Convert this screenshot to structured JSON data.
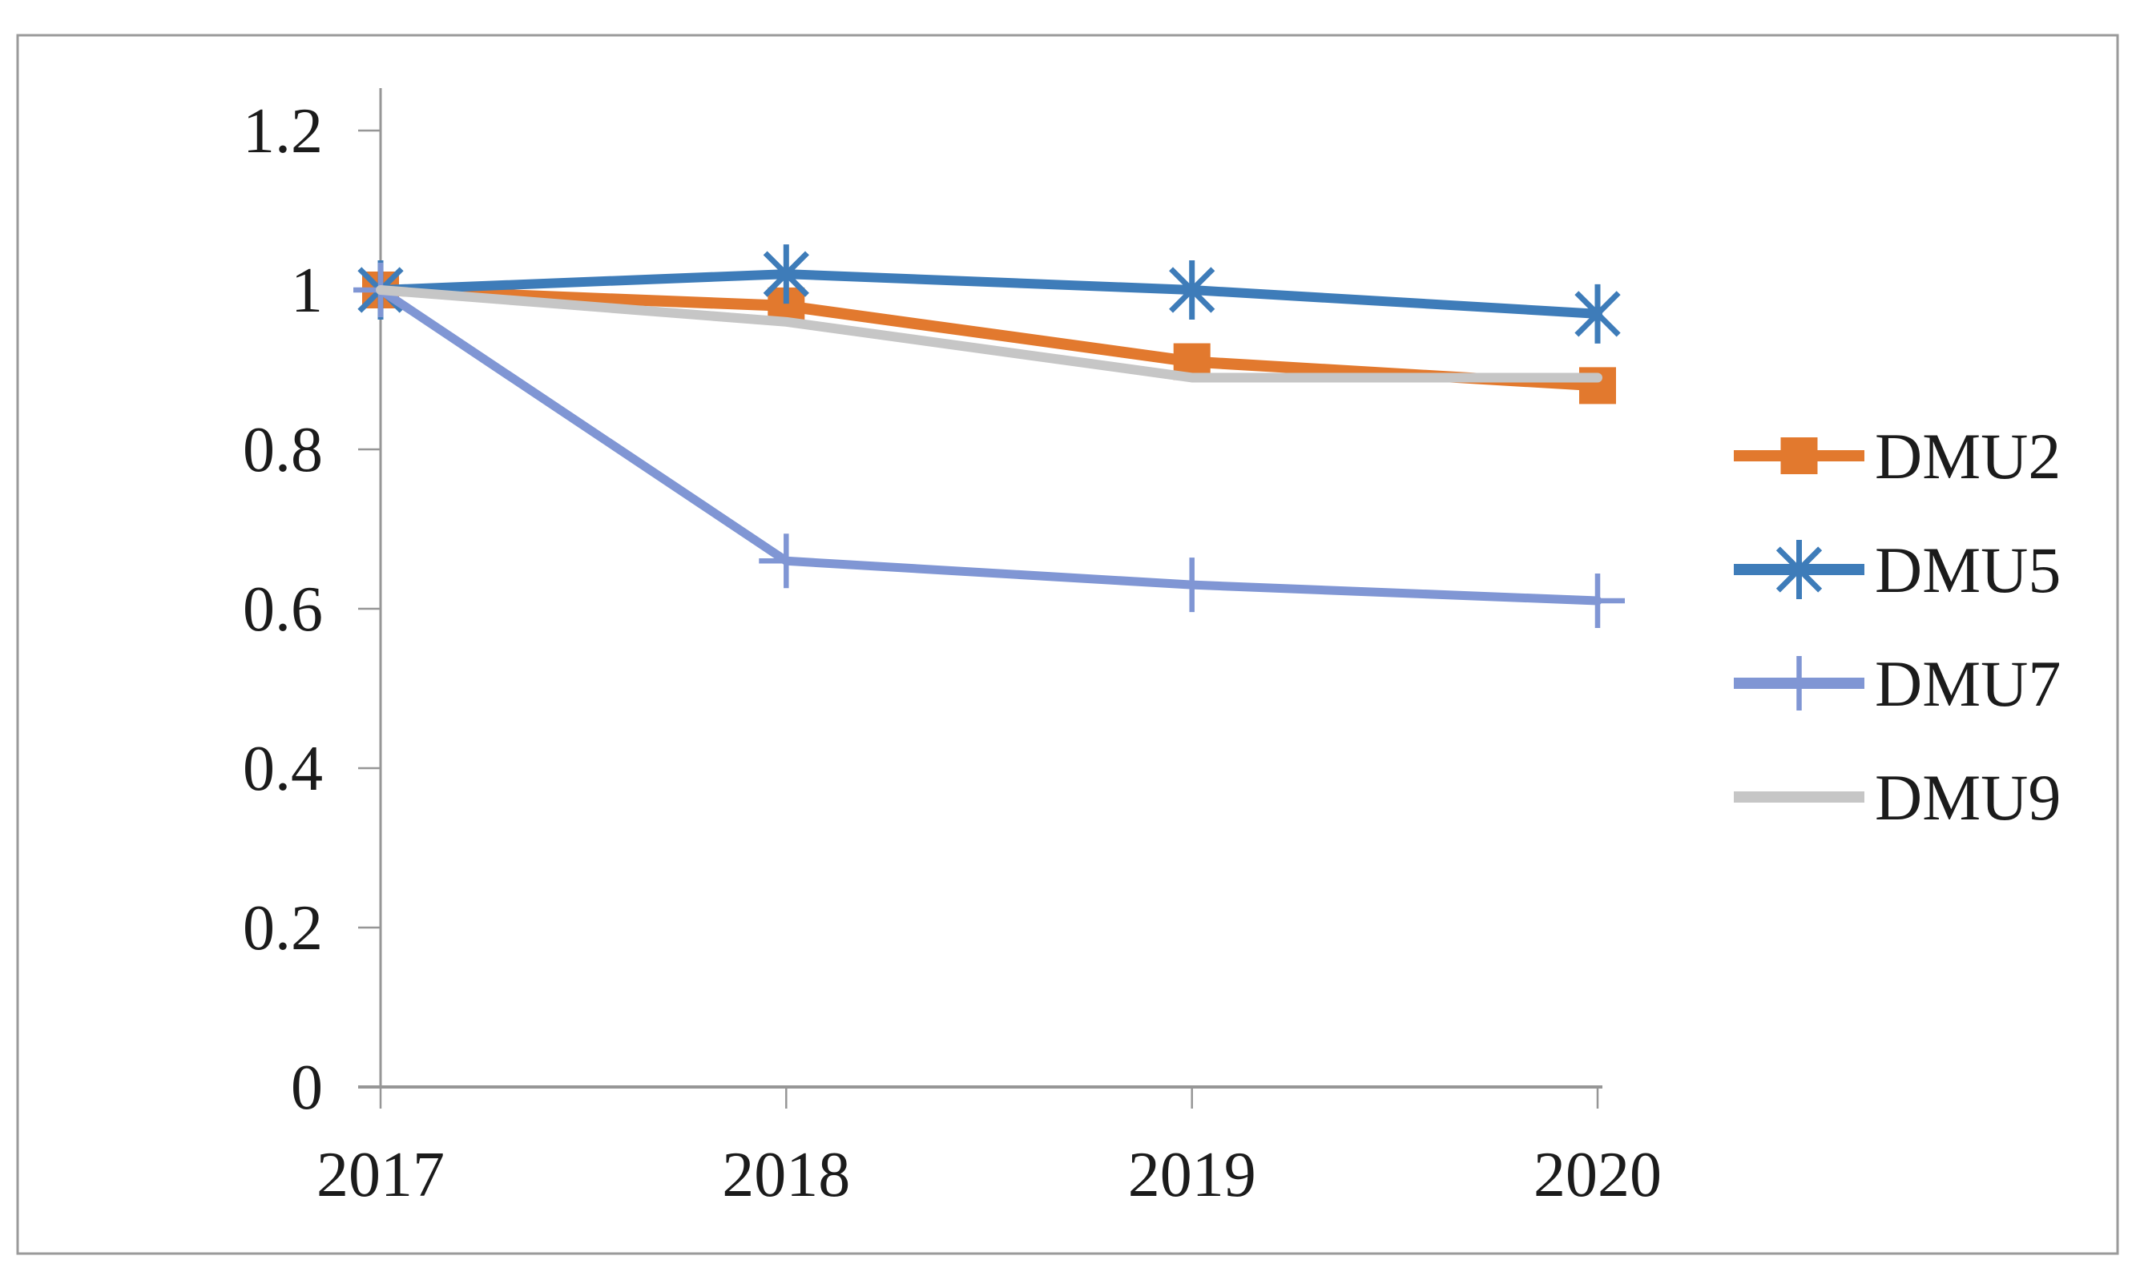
{
  "figure": {
    "background": "#ffffff",
    "border_color": "#9a9a9a"
  },
  "chart_data": {
    "type": "line",
    "title": "",
    "xlabel": "",
    "ylabel": "",
    "x": [
      "2017",
      "2018",
      "2019",
      "2020"
    ],
    "series": [
      {
        "name": "DMU2",
        "values": [
          1.0,
          0.98,
          0.91,
          0.88
        ],
        "color": "#E2792E",
        "marker": "square"
      },
      {
        "name": "DMU5",
        "values": [
          1.0,
          1.02,
          1.0,
          0.97
        ],
        "color": "#3E7CB9",
        "marker": "asterisk"
      },
      {
        "name": "DMU7",
        "values": [
          1.0,
          0.66,
          0.63,
          0.61
        ],
        "color": "#8096D4",
        "marker": "plus"
      },
      {
        "name": "DMU9",
        "values": [
          1.0,
          0.96,
          0.89,
          0.89
        ],
        "color": "#C6C6C6",
        "marker": "none"
      }
    ],
    "ylim": [
      0,
      1.2
    ],
    "yticks": [
      0,
      0.2,
      0.4,
      0.6,
      0.8,
      1,
      1.2
    ],
    "ytick_labels": [
      "0",
      "0.2",
      "0.4",
      "0.6",
      "0.8",
      "1",
      "1.2"
    ],
    "xtick_labels": [
      "2017",
      "2018",
      "2019",
      "2020"
    ],
    "grid": false,
    "legend_position": "right-middle",
    "axis_color": "#969696",
    "label_color": "#1b1b1b"
  }
}
